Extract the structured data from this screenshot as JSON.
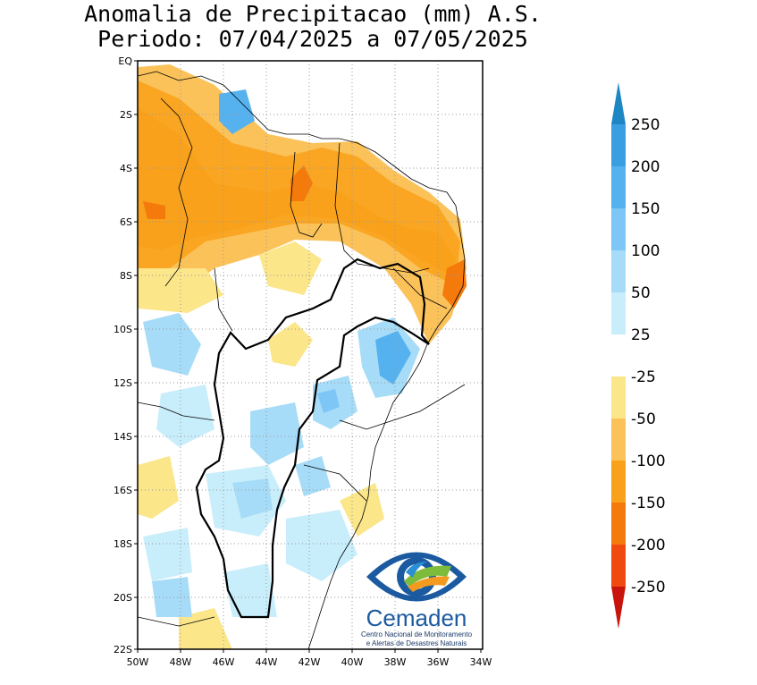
{
  "title_line1": "Anomalia de Precipitacao (mm) A.S.",
  "title_line2": "Periodo: 07/04/2025 a 07/05/2025",
  "map": {
    "lat_ticks": [
      "EQ",
      "2S",
      "4S",
      "6S",
      "8S",
      "10S",
      "12S",
      "14S",
      "16S",
      "18S",
      "20S",
      "22S"
    ],
    "lon_ticks": [
      "50W",
      "48W",
      "46W",
      "44W",
      "42W",
      "40W",
      "38W",
      "36W",
      "34W"
    ]
  },
  "colorbar": {
    "labels": [
      "250",
      "200",
      "150",
      "100",
      "50",
      "25",
      "-25",
      "-50",
      "-100",
      "-150",
      "-200",
      "-250"
    ],
    "colors": [
      "#1f86c4",
      "#3a9fe0",
      "#56b2ee",
      "#7dc6f5",
      "#a6dcf8",
      "#c9eefb",
      "#ffffff",
      "#fbe68a",
      "#fbc25a",
      "#f9a11a",
      "#f57a0c",
      "#f04a10",
      "#c8140c"
    ]
  },
  "logo": {
    "name": "Cemaden",
    "subtitle_line1": "Centro Nacional de Monitoramento",
    "subtitle_line2": "e Alertas de Desastres Naturais"
  }
}
